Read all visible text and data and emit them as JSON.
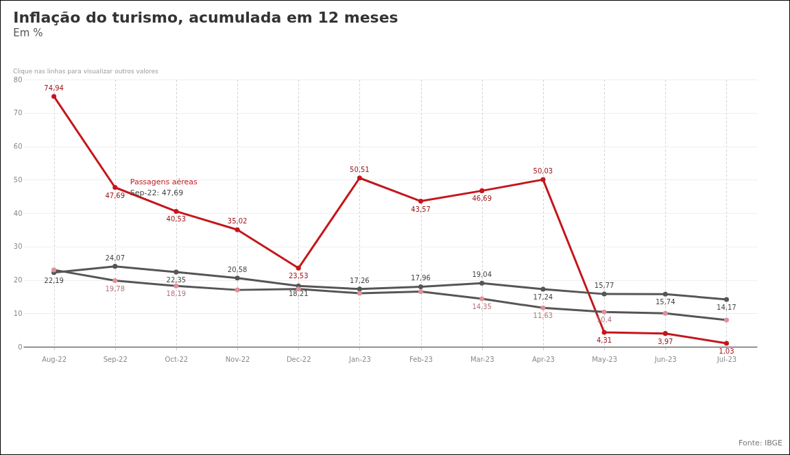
{
  "chart_data": {
    "type": "line",
    "title": "Inflação do turismo, acumulada em 12 meses",
    "subtitle": "Em %",
    "categories": [
      "Aug-22",
      "Sep-22",
      "Oct-22",
      "Nov-22",
      "Dec-22",
      "Jan-23",
      "Feb-23",
      "Mar-23",
      "Apr-23",
      "May-23",
      "Jun-23",
      "Jul-23"
    ],
    "series": [
      {
        "name": "Passagens aéreas",
        "color": "#c4161c",
        "values": [
          74.94,
          47.69,
          40.53,
          35.02,
          23.53,
          50.51,
          43.57,
          46.69,
          50.03,
          4.31,
          3.97,
          1.03
        ],
        "value_labels": [
          "74,94",
          "47,69",
          "40,53",
          "35,02",
          "23,53",
          "50,51",
          "43,57",
          "46,69",
          "50,03",
          "4,31",
          "3,97",
          "1,03"
        ]
      },
      {
        "color": "#555555",
        "values": [
          22.19,
          24.07,
          22.35,
          20.58,
          18.21,
          17.26,
          17.96,
          19.04,
          17.24,
          15.77,
          15.74,
          14.17
        ],
        "value_labels": [
          "22,19",
          "24,07",
          "22,35",
          "20,58",
          "18,21",
          "17,26",
          "17,96",
          "19,04",
          "17,24",
          "15,77",
          "15,74",
          "14,17"
        ]
      },
      {
        "color": "#e0909a",
        "values": [
          23,
          19.78,
          18.19,
          17,
          17.3,
          16,
          16.5,
          14.35,
          11.63,
          10.4,
          10,
          8
        ],
        "value_labels": [
          null,
          "19,78",
          "18,19",
          null,
          null,
          null,
          null,
          "14,35",
          "11,63",
          "10,4",
          null,
          null
        ]
      }
    ],
    "ylim": [
      0,
      80
    ],
    "yticks": [
      0,
      10,
      20,
      30,
      40,
      50,
      60,
      70,
      80
    ],
    "grid": true,
    "legend": false,
    "marker": "circle",
    "line_style": "solid",
    "annotations": [
      "Clique nas linhas para visualizar outros valores",
      {
        "text": "Sep-22: 47,69",
        "x": "Sep-22",
        "y": 47.69
      },
      "Fonte: IBGE"
    ]
  }
}
